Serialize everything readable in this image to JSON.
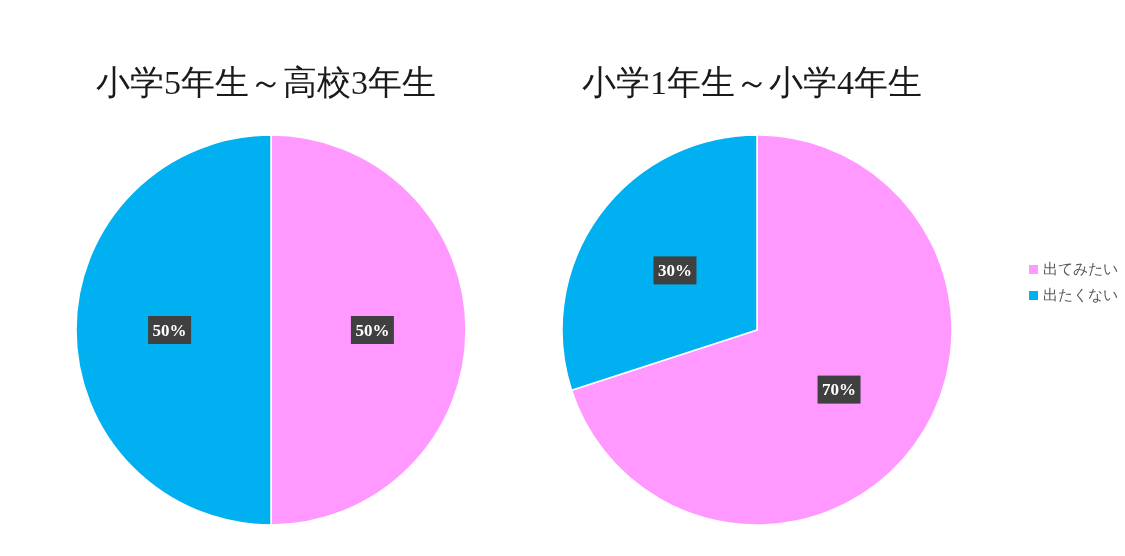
{
  "chart_data": [
    {
      "type": "pie",
      "title": "小学5年生～高校3年生",
      "categories": [
        null,
        null
      ],
      "values": [
        50,
        50
      ],
      "colors": [
        "#ff99ff",
        "#00b0f0"
      ],
      "value_labels": [
        "50%",
        "50%"
      ],
      "legend": false
    },
    {
      "type": "pie",
      "title": "小学1年生～小学4年生",
      "categories": [
        "出てみたい",
        "出たくない"
      ],
      "values": [
        70,
        30
      ],
      "colors": [
        "#ff99ff",
        "#00b0f0"
      ],
      "value_labels": [
        "70%",
        "30%"
      ],
      "legend": "right"
    }
  ]
}
